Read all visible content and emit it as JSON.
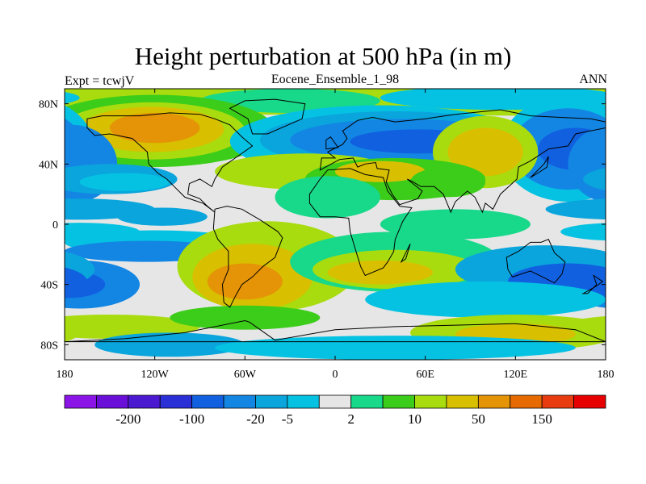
{
  "title": "Height perturbation at 500 hPa (in m)",
  "left_label": "Expt = tcwjV",
  "center_label": "Eocene_Ensemble_1_98",
  "right_label": "ANN",
  "chart_data": {
    "type": "heatmap",
    "projection": "cylindrical-equidistant",
    "xlim": [
      -180,
      180
    ],
    "ylim": [
      -90,
      90
    ],
    "x_tick_labels": [
      {
        "value": -180,
        "label": "180"
      },
      {
        "value": -120,
        "label": "120W"
      },
      {
        "value": -60,
        "label": "60W"
      },
      {
        "value": 0,
        "label": "0"
      },
      {
        "value": 60,
        "label": "60E"
      },
      {
        "value": 120,
        "label": "120E"
      },
      {
        "value": 180,
        "label": "180"
      }
    ],
    "y_tick_labels": [
      {
        "value": 80,
        "label": "80N"
      },
      {
        "value": 40,
        "label": "40N"
      },
      {
        "value": 0,
        "label": "0"
      },
      {
        "value": -40,
        "label": "40S"
      },
      {
        "value": -80,
        "label": "80S"
      }
    ],
    "colorbar": {
      "labels": [
        "-200",
        "-100",
        "-20",
        "-5",
        "2",
        "10",
        "50",
        "150"
      ],
      "colors": [
        "#8b14e6",
        "#6a0fd8",
        "#4a19d0",
        "#2a2fd6",
        "#1060e0",
        "#1386e4",
        "#0aa5dc",
        "#05c2e2",
        "#e6e6e6",
        "#18d88a",
        "#3ccc1a",
        "#a8dc0e",
        "#d8c000",
        "#e49406",
        "#e66a00",
        "#e83c10",
        "#e60000"
      ]
    },
    "regions": [
      {
        "name": "NE Pacific high",
        "lon": -120,
        "lat": 63,
        "value_class": 150
      },
      {
        "name": "Eurasian low",
        "lon": 45,
        "lat": 52,
        "value_class": -100
      },
      {
        "name": "North Pacific low",
        "lon": 155,
        "lat": 48,
        "value_class": -100
      },
      {
        "name": "Central Asian high",
        "lon": 100,
        "lat": 45,
        "value_class": 50
      },
      {
        "name": "South Pacific low",
        "lon": -175,
        "lat": -38,
        "value_class": -100
      },
      {
        "name": "Australian low",
        "lon": 155,
        "lat": -38,
        "value_class": -100
      },
      {
        "name": "South American high",
        "lon": -60,
        "lat": -40,
        "value_class": 50
      },
      {
        "name": "Southern Ocean high",
        "lon": 120,
        "lat": -72,
        "value_class": 50
      }
    ]
  }
}
